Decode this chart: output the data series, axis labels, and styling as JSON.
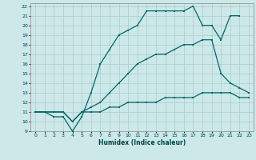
{
  "xlabel": "Humidex (Indice chaleur)",
  "bg_color": "#cce8e8",
  "grid_color": "#aacccc",
  "line_color": "#006868",
  "xlim": [
    -0.5,
    23.5
  ],
  "ylim": [
    9,
    22.3
  ],
  "xticks": [
    0,
    1,
    2,
    3,
    4,
    5,
    6,
    7,
    8,
    9,
    10,
    11,
    12,
    13,
    14,
    15,
    16,
    17,
    18,
    19,
    20,
    21,
    22,
    23
  ],
  "yticks": [
    9,
    10,
    11,
    12,
    13,
    14,
    15,
    16,
    17,
    18,
    19,
    20,
    21,
    22
  ],
  "curve1_x": [
    0,
    1,
    2,
    3,
    4,
    5,
    6,
    7,
    8,
    9,
    10,
    11,
    12,
    13,
    14,
    15,
    16,
    17,
    18,
    19,
    20,
    21,
    22,
    23
  ],
  "curve1_y": [
    11,
    11,
    11,
    11,
    10,
    11,
    11,
    11,
    11.5,
    11.5,
    12,
    12,
    12,
    12,
    12.5,
    12.5,
    12.5,
    12.5,
    13,
    13,
    13,
    13,
    12.5,
    12.5
  ],
  "curve2_x": [
    0,
    1,
    2,
    3,
    4,
    5,
    6,
    7,
    8,
    9,
    10,
    11,
    12,
    13,
    14,
    15,
    16,
    17,
    18,
    19,
    20,
    21,
    22,
    23
  ],
  "curve2_y": [
    11,
    11,
    11,
    11,
    10,
    11,
    11.5,
    12,
    13,
    14,
    15,
    16,
    16.5,
    17,
    17,
    17.5,
    18,
    18,
    18.5,
    18.5,
    15,
    14,
    13.5,
    13
  ],
  "curve3_x": [
    0,
    1,
    2,
    3,
    4,
    5,
    6,
    7,
    8,
    9,
    10,
    11,
    12,
    13,
    14,
    15,
    16,
    17,
    18,
    19,
    20,
    21,
    22
  ],
  "curve3_y": [
    11,
    11,
    10.5,
    10.5,
    9,
    10.5,
    13,
    16,
    17.5,
    19,
    19.5,
    20,
    21.5,
    21.5,
    21.5,
    21.5,
    21.5,
    22,
    20,
    20,
    18.5,
    21,
    21
  ]
}
